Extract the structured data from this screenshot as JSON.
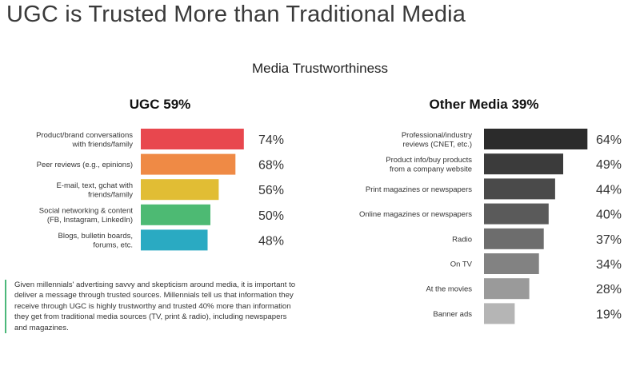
{
  "title": "UGC is Trusted More than Traditional Media",
  "subtitle": "Media Trustworthiness",
  "note": "Given millennials' advertising savvy and skepticism around media, it is important to deliver a message through trusted sources. Millennials tell us that information they receive through UGC is highly trustworthy and trusted 40% more than information they get from traditional media sources (TV, print & radio), including newspapers and magazines.",
  "chart_data": [
    {
      "type": "bar",
      "orientation": "horizontal",
      "title": "UGC 59%",
      "categories": [
        [
          "Product/brand conversations",
          "with friends/family"
        ],
        [
          "Peer reviews (e.g., epinions)"
        ],
        [
          "E-mail, text, gchat with",
          "friends/family"
        ],
        [
          "Social networking & content",
          "(FB, Instagram, LinkedIn)"
        ],
        [
          "Blogs, bulletin boards,",
          "forums, etc."
        ]
      ],
      "values": [
        74,
        68,
        56,
        50,
        48
      ],
      "value_labels": [
        "74%",
        "68%",
        "56%",
        "50%",
        "48%"
      ],
      "colors": [
        "#e8474e",
        "#ef8a45",
        "#e1bd34",
        "#4dba73",
        "#2aaac2"
      ]
    },
    {
      "type": "bar",
      "orientation": "horizontal",
      "title": "Other Media 39%",
      "categories": [
        [
          "Professional/industry",
          "reviews (CNET, etc.)"
        ],
        [
          "Product info/buy products",
          "from a company website"
        ],
        [
          "Print magazines or newspapers"
        ],
        [
          "Online magazines or newspapers"
        ],
        [
          "Radio"
        ],
        [
          "On TV"
        ],
        [
          "At the movies"
        ],
        [
          "Banner ads"
        ]
      ],
      "values": [
        64,
        49,
        44,
        40,
        37,
        34,
        28,
        19
      ],
      "value_labels": [
        "64%",
        "49%",
        "44%",
        "40%",
        "37%",
        "34%",
        "28%",
        "19%"
      ],
      "colors": [
        "#2b2b2b",
        "#3b3b3b",
        "#4a4a4a",
        "#5a5a5a",
        "#6d6d6d",
        "#828282",
        "#9a9a9a",
        "#b5b5b5"
      ]
    }
  ]
}
